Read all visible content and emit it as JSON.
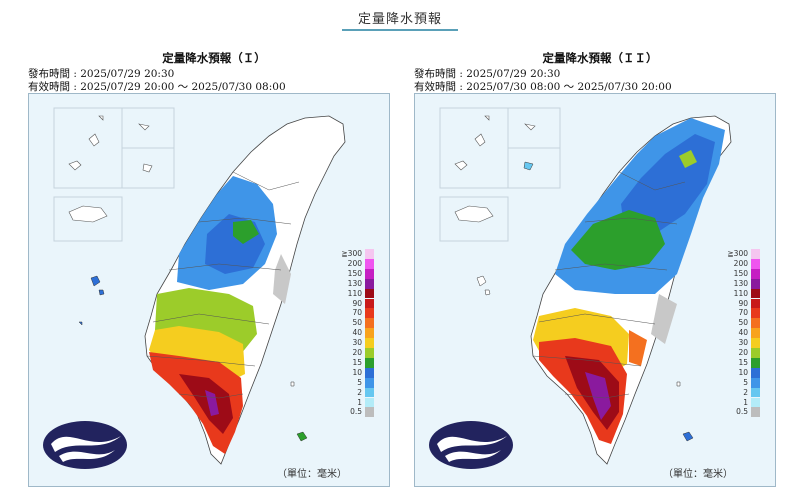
{
  "header": {
    "title": "定量降水預報"
  },
  "colors": {
    "sea": "#eaf5fb",
    "land_none": "#ffffff",
    "land_low": "#c8c8c8",
    "logo_fill": "#22235e"
  },
  "legend": {
    "unit": "（單位：毫米）",
    "levels": [
      {
        "label": "≧300",
        "color": "#f5c6f0"
      },
      {
        "label": "200",
        "color": "#ef55ef"
      },
      {
        "label": "150",
        "color": "#c51fc3"
      },
      {
        "label": "130",
        "color": "#8a1a9e"
      },
      {
        "label": "110",
        "color": "#9d0b17"
      },
      {
        "label": "90",
        "color": "#c81a1a"
      },
      {
        "label": "70",
        "color": "#e8391c"
      },
      {
        "label": "50",
        "color": "#f4701f"
      },
      {
        "label": "40",
        "color": "#f8a31d"
      },
      {
        "label": "30",
        "color": "#f5cd1f"
      },
      {
        "label": "20",
        "color": "#9ccc2a"
      },
      {
        "label": "15",
        "color": "#2c9f2c"
      },
      {
        "label": "10",
        "color": "#2d6fd6"
      },
      {
        "label": "5",
        "color": "#3f95e8"
      },
      {
        "label": "2",
        "color": "#66c7f0"
      },
      {
        "label": "1",
        "color": "#b3ecf8"
      },
      {
        "label": "0.5",
        "color": "#bdbdbd"
      }
    ]
  },
  "panels": [
    {
      "title": "定量降水預報（Ｉ）",
      "issue_time": "發布時間 : 2025/07/29 20:30",
      "valid_time": "有效時間 : 2025/07/29 20:00 ～ 2025/07/30 08:00"
    },
    {
      "title": "定量降水預報（ＩＩ）",
      "issue_time": "發布時間 : 2025/07/29 20:30",
      "valid_time": "有效時間 : 2025/07/30 08:00 ～ 2025/07/30 20:00"
    }
  ]
}
